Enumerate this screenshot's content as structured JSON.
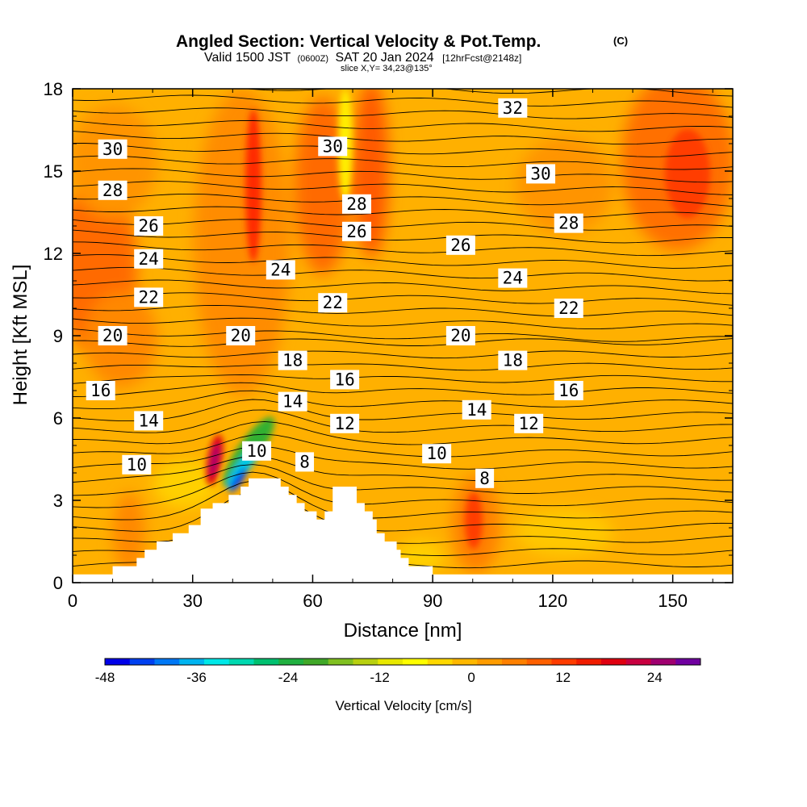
{
  "chart_data": {
    "type": "heatmap",
    "title": "Angled Section: Vertical Velocity & Pot.Temp.",
    "title_mark": "(C)",
    "subtitle_parts": [
      "Valid 1500 JST",
      "(0600Z)",
      "SAT 20 Jan 2024",
      "[12hrFcst@2148z]"
    ],
    "slice_text": "slice X,Y= 34,23@135°",
    "xlabel": "Distance [nm]",
    "ylabel": "Height [Kft MSL]",
    "xlim": [
      0,
      165
    ],
    "ylim": [
      0,
      18
    ],
    "xticks": [
      "0",
      "30",
      "60",
      "90",
      "120",
      "150"
    ],
    "xtick_values": [
      0,
      30,
      60,
      90,
      120,
      150
    ],
    "yticks": [
      "0",
      "3",
      "6",
      "9",
      "12",
      "15",
      "18"
    ],
    "ytick_values": [
      0,
      3,
      6,
      9,
      12,
      15,
      18
    ],
    "colorbar": {
      "label": "Vertical Velocity [cm/s]",
      "ticks": [
        "-48",
        "-36",
        "-24",
        "-12",
        "0",
        "12",
        "24"
      ],
      "tick_values": [
        -48,
        -36,
        -24,
        -12,
        0,
        12,
        24
      ],
      "range": [
        -48,
        30
      ],
      "step": 3,
      "colors": [
        "#0000e8",
        "#0040f0",
        "#0078f5",
        "#00b4f0",
        "#00e8e8",
        "#00d8b0",
        "#00c070",
        "#20b040",
        "#40a828",
        "#80c020",
        "#b8d010",
        "#e8e800",
        "#ffff00",
        "#ffd800",
        "#ffb800",
        "#ff9c00",
        "#ff8000",
        "#ff6000",
        "#ff3c00",
        "#f01c00",
        "#e00010",
        "#c80040",
        "#a00070",
        "#7000a0"
      ]
    },
    "isentrope_labels": [
      {
        "text": "30",
        "x": 10,
        "y": 15.8
      },
      {
        "text": "28",
        "x": 10,
        "y": 14.3
      },
      {
        "text": "26",
        "x": 19,
        "y": 13.0
      },
      {
        "text": "24",
        "x": 19,
        "y": 11.8
      },
      {
        "text": "22",
        "x": 19,
        "y": 10.4
      },
      {
        "text": "20",
        "x": 10,
        "y": 9.0
      },
      {
        "text": "16",
        "x": 7,
        "y": 7.0
      },
      {
        "text": "14",
        "x": 19,
        "y": 5.9
      },
      {
        "text": "10",
        "x": 16,
        "y": 4.3
      },
      {
        "text": "20",
        "x": 42,
        "y": 9.0
      },
      {
        "text": "24",
        "x": 52,
        "y": 11.4
      },
      {
        "text": "18",
        "x": 55,
        "y": 8.1
      },
      {
        "text": "14",
        "x": 55,
        "y": 6.6
      },
      {
        "text": "10",
        "x": 46,
        "y": 4.8
      },
      {
        "text": "8",
        "x": 58,
        "y": 4.4
      },
      {
        "text": "30",
        "x": 65,
        "y": 15.9
      },
      {
        "text": "28",
        "x": 71,
        "y": 13.8
      },
      {
        "text": "26",
        "x": 71,
        "y": 12.8
      },
      {
        "text": "22",
        "x": 65,
        "y": 10.2
      },
      {
        "text": "16",
        "x": 68,
        "y": 7.4
      },
      {
        "text": "12",
        "x": 68,
        "y": 5.8
      },
      {
        "text": "26",
        "x": 97,
        "y": 12.3
      },
      {
        "text": "20",
        "x": 97,
        "y": 9.0
      },
      {
        "text": "14",
        "x": 101,
        "y": 6.3
      },
      {
        "text": "10",
        "x": 91,
        "y": 4.7
      },
      {
        "text": "8",
        "x": 103,
        "y": 3.8
      },
      {
        "text": "32",
        "x": 110,
        "y": 17.3
      },
      {
        "text": "24",
        "x": 110,
        "y": 11.1
      },
      {
        "text": "18",
        "x": 110,
        "y": 8.1
      },
      {
        "text": "30",
        "x": 117,
        "y": 14.9
      },
      {
        "text": "12",
        "x": 114,
        "y": 5.8
      },
      {
        "text": "28",
        "x": 124,
        "y": 13.1
      },
      {
        "text": "22",
        "x": 124,
        "y": 10.0
      },
      {
        "text": "16",
        "x": 124,
        "y": 7.0
      }
    ],
    "terrain_height_kft": [
      [
        0,
        0.3
      ],
      [
        10,
        0.3
      ],
      [
        10,
        0.6
      ],
      [
        16,
        0.6
      ],
      [
        16,
        0.9
      ],
      [
        18,
        0.9
      ],
      [
        18,
        1.2
      ],
      [
        21,
        1.2
      ],
      [
        21,
        1.5
      ],
      [
        25,
        1.5
      ],
      [
        25,
        1.8
      ],
      [
        29,
        1.8
      ],
      [
        29,
        2.1
      ],
      [
        32,
        2.1
      ],
      [
        32,
        2.7
      ],
      [
        35,
        2.7
      ],
      [
        35,
        2.9
      ],
      [
        39,
        2.9
      ],
      [
        39,
        3.2
      ],
      [
        42,
        3.2
      ],
      [
        42,
        3.5
      ],
      [
        44,
        3.5
      ],
      [
        44,
        3.8
      ],
      [
        52,
        3.8
      ],
      [
        52,
        3.5
      ],
      [
        54,
        3.5
      ],
      [
        54,
        3.2
      ],
      [
        56,
        3.2
      ],
      [
        56,
        2.9
      ],
      [
        58,
        2.9
      ],
      [
        58,
        2.6
      ],
      [
        61,
        2.6
      ],
      [
        61,
        2.3
      ],
      [
        63,
        2.3
      ],
      [
        63,
        2.6
      ],
      [
        65,
        2.6
      ],
      [
        65,
        3.5
      ],
      [
        71,
        3.5
      ],
      [
        71,
        2.9
      ],
      [
        73,
        2.9
      ],
      [
        73,
        2.6
      ],
      [
        75,
        2.6
      ],
      [
        75,
        2.3
      ],
      [
        76,
        2.3
      ],
      [
        76,
        1.8
      ],
      [
        78,
        1.8
      ],
      [
        78,
        1.5
      ],
      [
        81,
        1.5
      ],
      [
        81,
        1.2
      ],
      [
        82,
        1.2
      ],
      [
        82,
        0.9
      ],
      [
        84,
        0.9
      ],
      [
        84,
        0.6
      ],
      [
        90,
        0.6
      ],
      [
        90,
        0.3
      ],
      [
        165,
        0.3
      ]
    ]
  }
}
